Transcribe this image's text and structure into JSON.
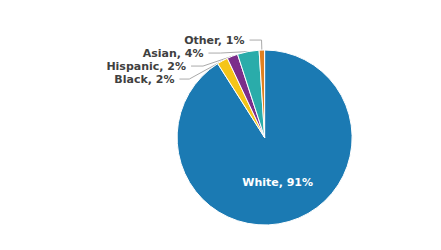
{
  "chart_data": {
    "type": "pie",
    "categories": [
      "White",
      "Black",
      "Hispanic",
      "Asian",
      "Other"
    ],
    "values": [
      91,
      2,
      2,
      4,
      1
    ],
    "value_labels": [
      "White, 91%",
      "Black, 2%",
      "Hispanic, 2%",
      "Asian, 4%",
      "Other, 1%"
    ],
    "colors": [
      "#1b7ab3",
      "#f5c518",
      "#7b2d8b",
      "#2aacaa",
      "#e08020"
    ],
    "data_labels": true
  }
}
